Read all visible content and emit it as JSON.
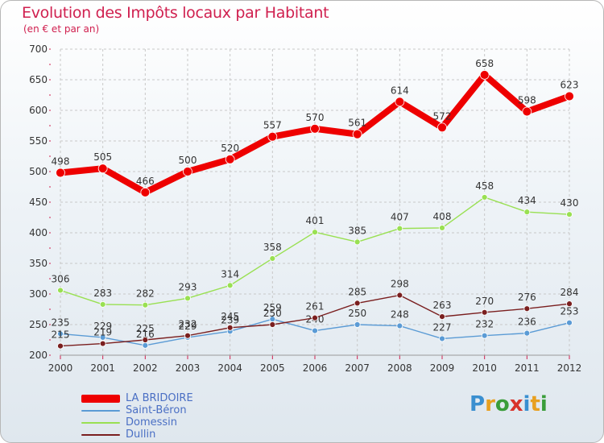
{
  "title": "Evolution des Impôts locaux par Habitant",
  "subtitle": "(en € et par an)",
  "logo_text": "Proxiti",
  "legend": [
    "LA BRIDOIRE",
    "Saint-Béron",
    "Domessin",
    "Dullin"
  ],
  "colors": {
    "title": "#d0204f",
    "legend_text": "#4a6fc4",
    "la_bridoire": "#ee0000",
    "saint_beron": "#5b9bd5",
    "domessin": "#99e052",
    "dullin": "#7a1f1f",
    "grid": "#c8c8c8"
  },
  "chart_data": {
    "type": "line",
    "title": "Evolution des Impôts locaux par Habitant",
    "subtitle": "(en € et par an)",
    "xlabel": "",
    "ylabel": "",
    "ylim": [
      200,
      700
    ],
    "yticks": [
      200,
      250,
      300,
      350,
      400,
      450,
      500,
      550,
      600,
      650,
      700
    ],
    "grid": true,
    "legend_position": "bottom-left",
    "categories": [
      "2000",
      "2001",
      "2002",
      "2003",
      "2004",
      "2005",
      "2006",
      "2007",
      "2008",
      "2009",
      "2010",
      "2011",
      "2012"
    ],
    "series": [
      {
        "name": "LA BRIDOIRE",
        "values": [
          498,
          505,
          466,
          500,
          520,
          557,
          570,
          561,
          614,
          572,
          658,
          598,
          623
        ]
      },
      {
        "name": "Saint-Béron",
        "values": [
          235,
          229,
          216,
          229,
          239,
          259,
          240,
          250,
          248,
          227,
          232,
          236,
          253
        ]
      },
      {
        "name": "Domessin",
        "values": [
          306,
          283,
          282,
          293,
          314,
          358,
          401,
          385,
          407,
          408,
          458,
          434,
          430
        ]
      },
      {
        "name": "Dullin",
        "values": [
          215,
          219,
          225,
          232,
          245,
          250,
          261,
          285,
          298,
          263,
          270,
          276,
          284
        ]
      }
    ]
  }
}
